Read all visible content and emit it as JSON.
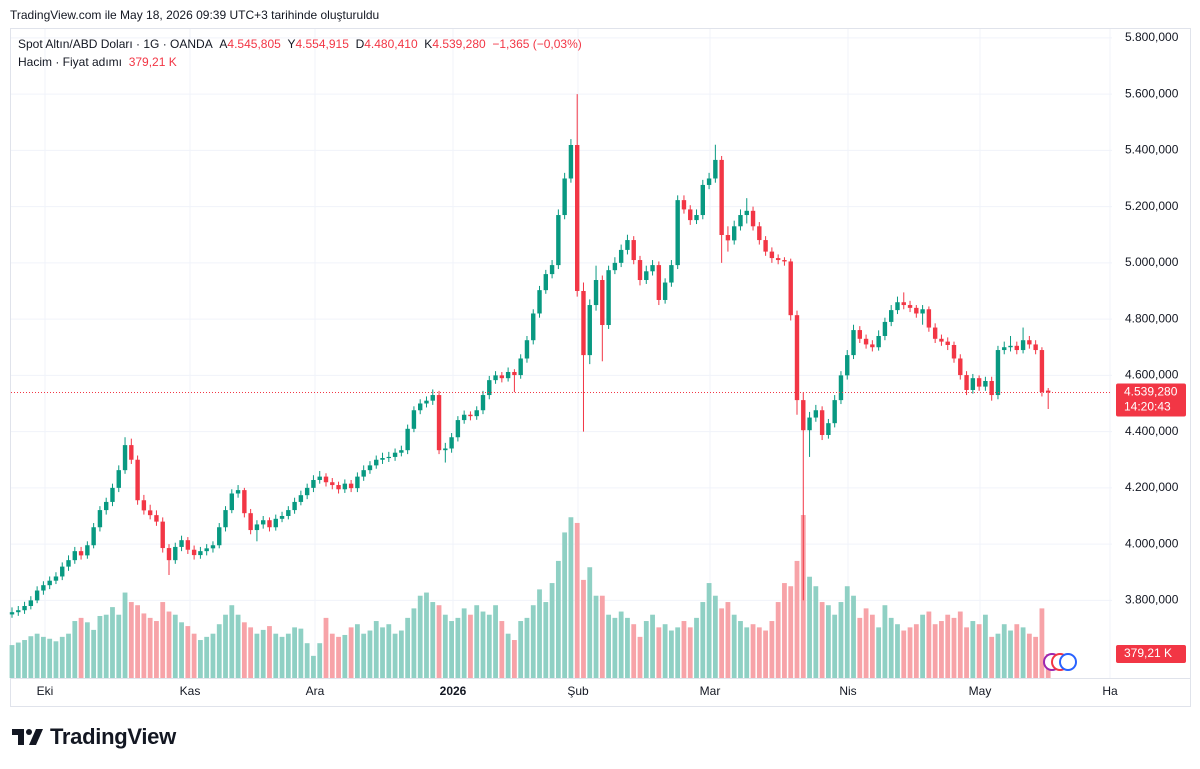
{
  "header": {
    "created": "TradingView.com ile May 18, 2026 09:39 UTC+3 tarihinde oluşturuldu"
  },
  "chart_data": {
    "type": "candlestick",
    "title": "Spot Altın/ABD Doları · 1G · OANDA",
    "legend": {
      "open_letter": "A",
      "open": "4.545,805",
      "high_letter": "Y",
      "high": "4.554,915",
      "low_letter": "D",
      "low": "4.480,410",
      "close_letter": "K",
      "close": "4.539,280",
      "change": "−1,365 (−0,03%)"
    },
    "volume_title": "Hacim · Fiyat adımı",
    "volume_label": "379,21 K",
    "countdown": "14:20:43",
    "x_labels": [
      "Eki",
      "Kas",
      "Ara",
      "2026",
      "Şub",
      "Mar",
      "Nis",
      "May",
      "Ha"
    ],
    "ohlc": [
      [
        3750,
        3775,
        3738,
        3758
      ],
      [
        3758,
        3780,
        3745,
        3765
      ],
      [
        3765,
        3795,
        3752,
        3780
      ],
      [
        3780,
        3815,
        3768,
        3800
      ],
      [
        3800,
        3850,
        3790,
        3835
      ],
      [
        3835,
        3868,
        3820,
        3854
      ],
      [
        3854,
        3885,
        3840,
        3870
      ],
      [
        3870,
        3900,
        3858,
        3885
      ],
      [
        3885,
        3935,
        3872,
        3920
      ],
      [
        3920,
        3960,
        3905,
        3943
      ],
      [
        3943,
        3990,
        3930,
        3975
      ],
      [
        3975,
        3990,
        3945,
        3960
      ],
      [
        3960,
        4010,
        3948,
        3996
      ],
      [
        3996,
        4075,
        3985,
        4060
      ],
      [
        4060,
        4135,
        4045,
        4121
      ],
      [
        4121,
        4165,
        4105,
        4150
      ],
      [
        4150,
        4215,
        4135,
        4200
      ],
      [
        4200,
        4280,
        4185,
        4263
      ],
      [
        4263,
        4380,
        4250,
        4352
      ],
      [
        4352,
        4375,
        4285,
        4300
      ],
      [
        4300,
        4315,
        4140,
        4156
      ],
      [
        4156,
        4175,
        4105,
        4120
      ],
      [
        4120,
        4140,
        4088,
        4103
      ],
      [
        4103,
        4120,
        4065,
        4080
      ],
      [
        4080,
        4095,
        3970,
        3986
      ],
      [
        3986,
        4000,
        3890,
        3943
      ],
      [
        3943,
        4005,
        3930,
        3990
      ],
      [
        3990,
        4030,
        3975,
        4014
      ],
      [
        4014,
        4025,
        3965,
        3980
      ],
      [
        3980,
        3995,
        3945,
        3961
      ],
      [
        3961,
        3990,
        3948,
        3975
      ],
      [
        3975,
        4000,
        3960,
        3985
      ],
      [
        3985,
        4010,
        3970,
        3996
      ],
      [
        3996,
        4075,
        3985,
        4060
      ],
      [
        4060,
        4135,
        4045,
        4121
      ],
      [
        4121,
        4195,
        4110,
        4180
      ],
      [
        4180,
        4210,
        4165,
        4192
      ],
      [
        4192,
        4200,
        4095,
        4110
      ],
      [
        4110,
        4125,
        4035,
        4050
      ],
      [
        4050,
        4085,
        4010,
        4070
      ],
      [
        4070,
        4100,
        4055,
        4085
      ],
      [
        4085,
        4095,
        4045,
        4060
      ],
      [
        4060,
        4105,
        4048,
        4090
      ],
      [
        4090,
        4115,
        4078,
        4100
      ],
      [
        4100,
        4135,
        4088,
        4121
      ],
      [
        4121,
        4165,
        4108,
        4150
      ],
      [
        4150,
        4190,
        4138,
        4174
      ],
      [
        4174,
        4215,
        4160,
        4200
      ],
      [
        4200,
        4245,
        4185,
        4228
      ],
      [
        4228,
        4260,
        4215,
        4240
      ],
      [
        4240,
        4252,
        4205,
        4220
      ],
      [
        4220,
        4235,
        4195,
        4210
      ],
      [
        4210,
        4222,
        4180,
        4195
      ],
      [
        4195,
        4230,
        4182,
        4215
      ],
      [
        4215,
        4228,
        4185,
        4199
      ],
      [
        4199,
        4255,
        4185,
        4240
      ],
      [
        4240,
        4280,
        4225,
        4263
      ],
      [
        4263,
        4295,
        4250,
        4280
      ],
      [
        4280,
        4315,
        4268,
        4300
      ],
      [
        4300,
        4325,
        4285,
        4306
      ],
      [
        4306,
        4328,
        4292,
        4310
      ],
      [
        4310,
        4340,
        4296,
        4325
      ],
      [
        4325,
        4350,
        4312,
        4334
      ],
      [
        4334,
        4425,
        4320,
        4410
      ],
      [
        4410,
        4490,
        4398,
        4476
      ],
      [
        4476,
        4515,
        4462,
        4500
      ],
      [
        4500,
        4525,
        4486,
        4510
      ],
      [
        4510,
        4550,
        4495,
        4530
      ],
      [
        4530,
        4545,
        4320,
        4334
      ],
      [
        4334,
        4360,
        4290,
        4340
      ],
      [
        4340,
        4395,
        4325,
        4380
      ],
      [
        4380,
        4455,
        4365,
        4441
      ],
      [
        4441,
        4475,
        4428,
        4460
      ],
      [
        4460,
        4472,
        4440,
        4455
      ],
      [
        4455,
        4490,
        4442,
        4476
      ],
      [
        4476,
        4545,
        4462,
        4530
      ],
      [
        4530,
        4598,
        4515,
        4583
      ],
      [
        4583,
        4615,
        4570,
        4600
      ],
      [
        4600,
        4612,
        4575,
        4590
      ],
      [
        4590,
        4628,
        4578,
        4612
      ],
      [
        4612,
        4622,
        4540,
        4601
      ],
      [
        4601,
        4675,
        4588,
        4660
      ],
      [
        4660,
        4740,
        4645,
        4725
      ],
      [
        4725,
        4835,
        4710,
        4820
      ],
      [
        4820,
        4918,
        4805,
        4903
      ],
      [
        4903,
        4975,
        4890,
        4960
      ],
      [
        4960,
        5010,
        4945,
        4992
      ],
      [
        4992,
        5190,
        4978,
        5170
      ],
      [
        5170,
        5320,
        5155,
        5300
      ],
      [
        5300,
        5440,
        5285,
        5419
      ],
      [
        5419,
        5600,
        4880,
        4900
      ],
      [
        4900,
        4930,
        4400,
        4672
      ],
      [
        4672,
        4870,
        4640,
        4850
      ],
      [
        4850,
        4990,
        4830,
        4939
      ],
      [
        4939,
        4955,
        4650,
        4779
      ],
      [
        4779,
        4990,
        4765,
        4974
      ],
      [
        4974,
        5020,
        4960,
        5000
      ],
      [
        5000,
        5065,
        4985,
        5046
      ],
      [
        5046,
        5100,
        5030,
        5081
      ],
      [
        5081,
        5095,
        4995,
        5010
      ],
      [
        5010,
        5025,
        4920,
        4939
      ],
      [
        4939,
        4990,
        4925,
        4970
      ],
      [
        4970,
        5010,
        4955,
        4992
      ],
      [
        4992,
        5005,
        4850,
        4868
      ],
      [
        4868,
        4945,
        4855,
        4930
      ],
      [
        4930,
        5010,
        4915,
        4992
      ],
      [
        4992,
        5240,
        4978,
        5223
      ],
      [
        5223,
        5240,
        5175,
        5190
      ],
      [
        5190,
        5205,
        5135,
        5152
      ],
      [
        5152,
        5190,
        5138,
        5170
      ],
      [
        5170,
        5295,
        5155,
        5277
      ],
      [
        5277,
        5320,
        5262,
        5300
      ],
      [
        5300,
        5420,
        5285,
        5366
      ],
      [
        5366,
        5380,
        5000,
        5099
      ],
      [
        5099,
        5130,
        5040,
        5080
      ],
      [
        5080,
        5150,
        5065,
        5130
      ],
      [
        5130,
        5190,
        5115,
        5170
      ],
      [
        5170,
        5230,
        5140,
        5185
      ],
      [
        5185,
        5200,
        5115,
        5130
      ],
      [
        5130,
        5145,
        5065,
        5081
      ],
      [
        5081,
        5095,
        5025,
        5040
      ],
      [
        5040,
        5055,
        5000,
        5017
      ],
      [
        5017,
        5030,
        4995,
        5010
      ],
      [
        5010,
        5020,
        4990,
        5005
      ],
      [
        5005,
        5015,
        4795,
        4814
      ],
      [
        4814,
        4830,
        4460,
        4512
      ],
      [
        4512,
        4540,
        3800,
        4405
      ],
      [
        4405,
        4470,
        4310,
        4450
      ],
      [
        4450,
        4495,
        4435,
        4476
      ],
      [
        4476,
        4490,
        4370,
        4388
      ],
      [
        4388,
        4445,
        4375,
        4430
      ],
      [
        4430,
        4530,
        4415,
        4512
      ],
      [
        4512,
        4615,
        4498,
        4600
      ],
      [
        4600,
        4690,
        4585,
        4672
      ],
      [
        4672,
        4780,
        4658,
        4761
      ],
      [
        4761,
        4775,
        4715,
        4730
      ],
      [
        4730,
        4745,
        4695,
        4710
      ],
      [
        4710,
        4725,
        4685,
        4700
      ],
      [
        4700,
        4760,
        4688,
        4740
      ],
      [
        4740,
        4805,
        4725,
        4790
      ],
      [
        4790,
        4850,
        4775,
        4832
      ],
      [
        4832,
        4880,
        4818,
        4860
      ],
      [
        4860,
        4895,
        4835,
        4850
      ],
      [
        4850,
        4865,
        4825,
        4840
      ],
      [
        4840,
        4850,
        4805,
        4820
      ],
      [
        4820,
        4850,
        4780,
        4835
      ],
      [
        4835,
        4845,
        4755,
        4770
      ],
      [
        4770,
        4785,
        4715,
        4730
      ],
      [
        4730,
        4745,
        4705,
        4720
      ],
      [
        4720,
        4735,
        4690,
        4708
      ],
      [
        4708,
        4720,
        4645,
        4660
      ],
      [
        4660,
        4675,
        4585,
        4601
      ],
      [
        4601,
        4615,
        4530,
        4548
      ],
      [
        4548,
        4605,
        4535,
        4590
      ],
      [
        4590,
        4600,
        4545,
        4560
      ],
      [
        4560,
        4595,
        4545,
        4580
      ],
      [
        4580,
        4595,
        4510,
        4530
      ],
      [
        4530,
        4705,
        4515,
        4690
      ],
      [
        4690,
        4720,
        4675,
        4700
      ],
      [
        4700,
        4740,
        4685,
        4705
      ],
      [
        4705,
        4720,
        4675,
        4690
      ],
      [
        4690,
        4770,
        4678,
        4725
      ],
      [
        4725,
        4740,
        4695,
        4710
      ],
      [
        4710,
        4725,
        4675,
        4690
      ],
      [
        4690,
        4700,
        4525,
        4540.645
      ],
      [
        4545.805,
        4554.915,
        4480.41,
        4539.28
      ]
    ],
    "volume": [
      520,
      560,
      600,
      660,
      700,
      650,
      620,
      580,
      650,
      700,
      900,
      950,
      880,
      760,
      980,
      1000,
      1120,
      1000,
      1350,
      1200,
      1150,
      1020,
      950,
      900,
      1200,
      1050,
      1000,
      880,
      820,
      700,
      600,
      650,
      700,
      850,
      1000,
      1150,
      1000,
      880,
      800,
      700,
      760,
      820,
      700,
      650,
      700,
      800,
      780,
      550,
      350,
      550,
      950,
      700,
      650,
      680,
      800,
      850,
      700,
      750,
      900,
      800,
      850,
      700,
      750,
      950,
      1100,
      1300,
      1350,
      1200,
      1150,
      1000,
      900,
      950,
      1100,
      1000,
      1150,
      1050,
      1000,
      1150,
      900,
      700,
      600,
      900,
      950,
      1150,
      1400,
      1200,
      1500,
      1850,
      2300,
      2540,
      2450,
      1550,
      1750,
      1300,
      1300,
      1000,
      950,
      1050,
      950,
      850,
      650,
      900,
      1000,
      800,
      850,
      750,
      800,
      900,
      800,
      950,
      1200,
      1500,
      1300,
      1100,
      1200,
      1000,
      900,
      800,
      850,
      800,
      750,
      900,
      1200,
      1500,
      1450,
      1850,
      2575,
      1600,
      1450,
      1200,
      1150,
      1000,
      1200,
      1450,
      1300,
      950,
      1100,
      1000,
      800,
      1150,
      950,
      850,
      750,
      800,
      850,
      1000,
      1050,
      850,
      900,
      1000,
      950,
      1050,
      800,
      900,
      850,
      1000,
      650,
      700,
      850,
      750,
      850,
      800,
      700,
      650,
      1100,
      379.21
    ],
    "ylim": [
      3524,
      5835
    ],
    "yticks": [
      {
        "value": 3800,
        "label": "3.800,000"
      },
      {
        "value": 4000,
        "label": "4.000,000"
      },
      {
        "value": 4200,
        "label": "4.200,000"
      },
      {
        "value": 4400,
        "label": "4.400,000"
      },
      {
        "value": 4600,
        "label": "4.600,000"
      },
      {
        "value": 4800,
        "label": "4.800,000"
      },
      {
        "value": 5000,
        "label": "5.000,000"
      },
      {
        "value": 5200,
        "label": "5.200,000"
      },
      {
        "value": 5400,
        "label": "5.400,000"
      },
      {
        "value": 5600,
        "label": "5.600,000"
      },
      {
        "value": 5800,
        "label": "5.800,000"
      }
    ],
    "y2lim": [
      0,
      10270
    ],
    "grid": true,
    "up_color": "#089981",
    "down_color": "#f23645",
    "volume_up_color": "#8fd0c4",
    "volume_down_color": "#f7a3a8"
  },
  "footer": {
    "logo": "TradingView"
  }
}
